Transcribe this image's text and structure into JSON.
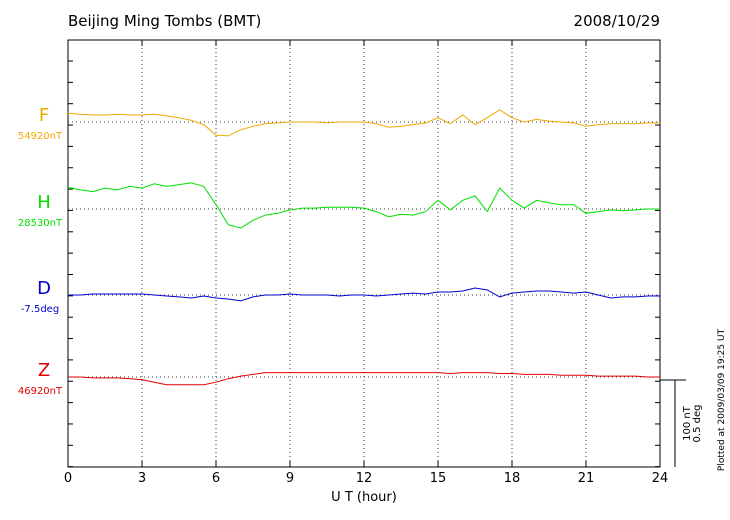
{
  "chart_data": {
    "type": "magnetogram",
    "title": "Beijing Ming Tombs (BMT)",
    "date": "2008/10/29",
    "xlabel": "U T (hour)",
    "footnote": "Plotted at 2009/03/09 19:25 UT",
    "xlim": [
      0,
      24
    ],
    "xticks": [
      0,
      3,
      6,
      9,
      12,
      15,
      18,
      21,
      24
    ],
    "grid": true,
    "scale": [
      {
        "value": 100,
        "label": "100 nT"
      },
      {
        "value": 0.5,
        "label": "0.5 deg"
      }
    ],
    "x": [
      0,
      0.5,
      1,
      1.5,
      2,
      2.5,
      3,
      3.5,
      4,
      4.5,
      5,
      5.5,
      6,
      6.5,
      7,
      7.5,
      8,
      8.5,
      9,
      9.5,
      10,
      10.5,
      11,
      11.5,
      12,
      12.5,
      13,
      13.5,
      14,
      14.5,
      15,
      15.5,
      16,
      16.5,
      17,
      17.5,
      18,
      18.5,
      19,
      19.5,
      20,
      20.5,
      21,
      21.5,
      22,
      22.5,
      23,
      23.5,
      24
    ],
    "series": [
      {
        "name": "F",
        "color": "#f0a800",
        "baseline": {
          "value": 54920,
          "label": "54920nT"
        },
        "values": [
          54930,
          54929,
          54928,
          54928,
          54929,
          54928,
          54928,
          54929,
          54927,
          54925,
          54922,
          54917,
          54905,
          54904,
          54911,
          54915,
          54918,
          54919,
          54920,
          54920,
          54920,
          54919,
          54920,
          54920,
          54920,
          54918,
          54914,
          54915,
          54917,
          54919,
          54925,
          54918,
          54928,
          54917,
          54925,
          54934,
          54925,
          54920,
          54923,
          54921,
          54920,
          54919,
          54915,
          54917,
          54918,
          54918,
          54918,
          54919,
          54919
        ]
      },
      {
        "name": "H",
        "color": "#00e000",
        "baseline": {
          "value": 28530,
          "label": "28530nT"
        },
        "values": [
          28555,
          28552,
          28550,
          28554,
          28552,
          28556,
          28554,
          28559,
          28556,
          28558,
          28560,
          28556,
          28535,
          28512,
          28508,
          28517,
          28523,
          28525,
          28529,
          28531,
          28531,
          28532,
          28532,
          28532,
          28531,
          28527,
          28521,
          28524,
          28523,
          28527,
          28540,
          28529,
          28540,
          28545,
          28527,
          28554,
          28540,
          28531,
          28540,
          28537,
          28535,
          28535,
          28525,
          28527,
          28529,
          28528,
          28529,
          28530,
          28530
        ]
      },
      {
        "name": "D",
        "color": "#0000d0",
        "baseline": {
          "value": -7.5,
          "label": "-7.5deg"
        },
        "values": [
          -7.5,
          -7.5,
          -7.494,
          -7.494,
          -7.494,
          -7.494,
          -7.494,
          -7.5,
          -7.506,
          -7.511,
          -7.517,
          -7.506,
          -7.517,
          -7.523,
          -7.534,
          -7.511,
          -7.5,
          -7.5,
          -7.494,
          -7.5,
          -7.5,
          -7.5,
          -7.506,
          -7.5,
          -7.5,
          -7.506,
          -7.5,
          -7.494,
          -7.489,
          -7.494,
          -7.483,
          -7.483,
          -7.477,
          -7.46,
          -7.471,
          -7.511,
          -7.489,
          -7.483,
          -7.477,
          -7.477,
          -7.483,
          -7.489,
          -7.483,
          -7.5,
          -7.517,
          -7.511,
          -7.511,
          -7.506,
          -7.506
        ]
      },
      {
        "name": "Z",
        "color": "#e00000",
        "baseline": {
          "value": 46920,
          "label": "46920nT"
        },
        "values": [
          46920,
          46920,
          46919,
          46919,
          46919,
          46918,
          46917,
          46914,
          46911,
          46911,
          46911,
          46911,
          46914,
          46918,
          46921,
          46923,
          46925,
          46925,
          46925,
          46925,
          46925,
          46925,
          46925,
          46925,
          46925,
          46925,
          46925,
          46925,
          46925,
          46925,
          46925,
          46924,
          46925,
          46925,
          46925,
          46924,
          46924,
          46923,
          46923,
          46923,
          46922,
          46922,
          46922,
          46921,
          46921,
          46921,
          46921,
          46920,
          46920
        ]
      }
    ]
  }
}
